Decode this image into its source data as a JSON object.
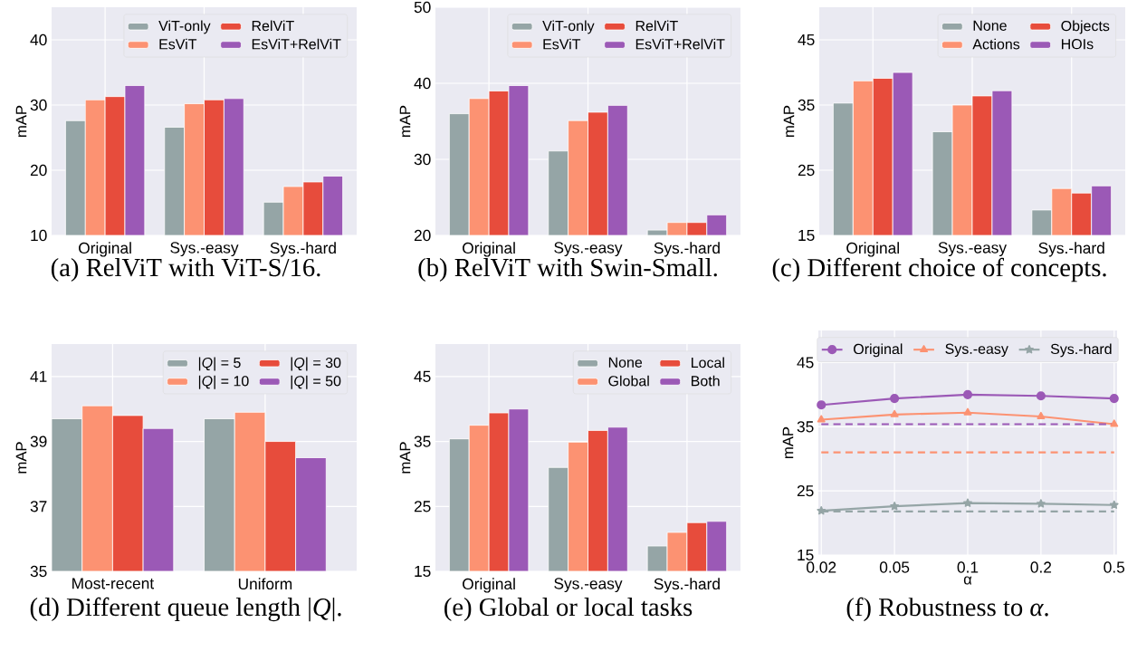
{
  "chart_data": [
    {
      "type": "bar",
      "categories": [
        "Original",
        "Sys.-easy",
        "Sys.-hard"
      ],
      "ylabel": "mAP",
      "ylim": [
        10,
        45
      ],
      "yticks": [
        10,
        20,
        30,
        40
      ],
      "grid": true,
      "legend": "top right",
      "series": [
        {
          "name": "ViT-only",
          "color": "#95a5a6",
          "values": [
            27.6,
            26.6,
            15.1
          ]
        },
        {
          "name": "EsViT",
          "color": "#fc9272",
          "values": [
            30.8,
            30.2,
            17.5
          ]
        },
        {
          "name": "RelViT",
          "color": "#e74c3c",
          "values": [
            31.3,
            30.8,
            18.2
          ]
        },
        {
          "name": "EsViT+RelViT",
          "color": "#9b59b6",
          "values": [
            33.0,
            31.0,
            19.1
          ]
        }
      ],
      "annotations": [
        "(a) RelViT with ViT-S/16."
      ]
    },
    {
      "type": "bar",
      "categories": [
        "Original",
        "Sys.-easy",
        "Sys.-hard"
      ],
      "ylabel": "mAP",
      "ylim": [
        20,
        50
      ],
      "yticks": [
        20,
        30,
        40,
        50
      ],
      "grid": true,
      "legend": "top right",
      "series": [
        {
          "name": "ViT-only",
          "color": "#95a5a6",
          "values": [
            36.0,
            31.1,
            20.7
          ]
        },
        {
          "name": "EsViT",
          "color": "#fc9272",
          "values": [
            38.0,
            35.1,
            21.7
          ]
        },
        {
          "name": "RelViT",
          "color": "#e74c3c",
          "values": [
            39.0,
            36.2,
            21.7
          ]
        },
        {
          "name": "EsViT+RelViT",
          "color": "#9b59b6",
          "values": [
            39.7,
            37.1,
            22.7
          ]
        }
      ],
      "annotations": [
        "(b) RelViT with Swin-Small."
      ]
    },
    {
      "type": "bar",
      "categories": [
        "Original",
        "Sys.-easy",
        "Sys.-hard"
      ],
      "ylabel": "mAP",
      "ylim": [
        15,
        50
      ],
      "yticks": [
        15,
        25,
        35,
        45
      ],
      "grid": true,
      "legend": "top right",
      "series": [
        {
          "name": "None",
          "color": "#95a5a6",
          "values": [
            35.3,
            30.9,
            18.9
          ]
        },
        {
          "name": "Actions",
          "color": "#fc9272",
          "values": [
            38.7,
            35.0,
            22.2
          ]
        },
        {
          "name": "Objects",
          "color": "#e74c3c",
          "values": [
            39.1,
            36.4,
            21.5
          ]
        },
        {
          "name": "HOIs",
          "color": "#9b59b6",
          "values": [
            40.0,
            37.2,
            22.6
          ]
        }
      ],
      "annotations": [
        "(c) Different choice of concepts."
      ]
    },
    {
      "type": "bar",
      "categories": [
        "Most-recent",
        "Uniform"
      ],
      "ylabel": "mAP",
      "ylim": [
        35,
        42
      ],
      "yticks": [
        35,
        37,
        39,
        41
      ],
      "grid": true,
      "legend": "top right",
      "series": [
        {
          "name": "|*Q*| = 5",
          "color": "#95a5a6",
          "values": [
            39.7,
            39.7
          ]
        },
        {
          "name": "|*Q*| = 10",
          "color": "#fc9272",
          "values": [
            40.1,
            39.9
          ]
        },
        {
          "name": "|*Q*| = 30",
          "color": "#e74c3c",
          "values": [
            39.8,
            39.0
          ]
        },
        {
          "name": "|*Q*| = 50",
          "color": "#9b59b6",
          "values": [
            39.4,
            38.5
          ]
        }
      ],
      "annotations": [
        "(d) Different queue length |*Q*|."
      ]
    },
    {
      "type": "bar",
      "categories": [
        "Original",
        "Sys.-easy",
        "Sys.-hard"
      ],
      "ylabel": "mAP",
      "ylim": [
        15,
        50
      ],
      "yticks": [
        15,
        25,
        35,
        45
      ],
      "grid": true,
      "legend": "top right",
      "series": [
        {
          "name": "None",
          "color": "#95a5a6",
          "values": [
            35.4,
            31.0,
            18.9
          ]
        },
        {
          "name": "Global",
          "color": "#fc9272",
          "values": [
            37.5,
            34.9,
            21.0
          ]
        },
        {
          "name": "Local",
          "color": "#e74c3c",
          "values": [
            39.4,
            36.7,
            22.5
          ]
        },
        {
          "name": "Both",
          "color": "#9b59b6",
          "values": [
            40.0,
            37.2,
            22.7
          ]
        }
      ],
      "annotations": [
        "(e) Global or local tasks"
      ]
    },
    {
      "type": "line",
      "categories": [
        "0.02",
        "0.05",
        "0.1",
        "0.2",
        "0.5"
      ],
      "xlabel": "α",
      "ylabel": "mAP",
      "ylim": [
        15,
        50
      ],
      "yticks": [
        15,
        25,
        35,
        45
      ],
      "grid": true,
      "legend": "top",
      "line_style": "solid",
      "series": [
        {
          "name": "Original",
          "color": "#9b59b6",
          "marker": "circle",
          "values": [
            38.4,
            39.4,
            40.0,
            39.8,
            39.4
          ]
        },
        {
          "name": "Sys.-easy",
          "color": "#fc9272",
          "marker": "triangle",
          "values": [
            36.1,
            36.9,
            37.2,
            36.6,
            35.4
          ]
        },
        {
          "name": "Sys.-hard",
          "color": "#95a5a6",
          "marker": "star",
          "values": [
            21.9,
            22.6,
            23.1,
            23.0,
            22.8
          ]
        }
      ],
      "ref_lines": [
        {
          "axis": "y",
          "value": 35.4,
          "color": "#9b59b6",
          "line_style": "dashed"
        },
        {
          "axis": "y",
          "value": 31.0,
          "color": "#fc9272",
          "line_style": "dashed"
        },
        {
          "axis": "y",
          "value": 21.8,
          "color": "#95a5a6",
          "line_style": "dashed"
        }
      ],
      "annotations": [
        "(f) Robustness to *α*."
      ]
    }
  ]
}
